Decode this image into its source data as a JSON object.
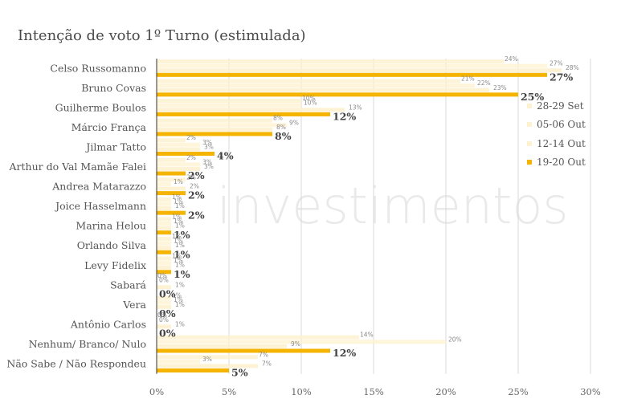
{
  "title": "Intenção de voto 1º Turno (estimulada)",
  "watermark_text": "investimentos",
  "legend": [
    {
      "label": "28-29 Set",
      "color": "#fdf1cf"
    },
    {
      "label": "05-06 Out",
      "color": "#fdf1cf"
    },
    {
      "label": "12-14 Out",
      "color": "#fdf1cf"
    },
    {
      "label": "19-20 Out",
      "color": "#f5b400"
    }
  ],
  "chart_data": {
    "type": "bar",
    "orientation": "horizontal",
    "title": "Intenção de voto 1º Turno (estimulada)",
    "categories": [
      "Celso Russomanno",
      "Bruno Covas",
      "Guilherme Boulos",
      "Márcio França",
      "Jilmar Tatto",
      "Arthur do Val Mamãe Falei",
      "Andrea Matarazzo",
      "Joice Hasselmann",
      "Marina Helou",
      "Orlando Silva",
      "Levy Fidelix",
      "Sabará",
      "Vera",
      "Antônio Carlos",
      "Nenhum/ Branco/ Nulo",
      "Não Sabe / Não Respondeu"
    ],
    "series": [
      {
        "name": "28-29 Set",
        "values": [
          24,
          21,
          10,
          8,
          2,
          2,
          2,
          1,
          1,
          1,
          1,
          0,
          1,
          0,
          14,
          7
        ],
        "labels": [
          "24%",
          "21%",
          "10%",
          "8%",
          "2%",
          "2%",
          "2%",
          "1%",
          "1%",
          "1%",
          "1%",
          "0%",
          "1%",
          "0%",
          "14%",
          "7%"
        ]
      },
      {
        "name": "05-06 Out",
        "values": [
          27,
          22,
          10,
          9,
          3,
          3,
          1,
          1,
          1,
          1,
          1,
          0,
          1,
          0,
          20,
          3
        ],
        "labels": [
          "27%",
          "22%",
          "10%",
          "9%",
          "3%",
          "3%",
          "1%",
          "1%",
          "1%",
          "1%",
          "1%",
          "0%",
          "1%",
          "0%",
          "20%",
          "3%"
        ]
      },
      {
        "name": "12-14 Out",
        "values": [
          28,
          23,
          13,
          8,
          3,
          3,
          2,
          1,
          1,
          1,
          1,
          1,
          1,
          1,
          9,
          7
        ],
        "labels": [
          "28%",
          "23%",
          "13%",
          "8%",
          "3%",
          "3%",
          "2%",
          "1%",
          "1%",
          "1%",
          "1%",
          "1%",
          "1%",
          "1%",
          "9%",
          "7%"
        ]
      },
      {
        "name": "19-20 Out",
        "values": [
          27,
          25,
          12,
          8,
          4,
          2,
          2,
          2,
          1,
          1,
          1,
          0,
          0,
          0,
          12,
          5
        ],
        "labels": [
          "27%",
          "25%",
          "12%",
          "8%",
          "4%",
          "2%",
          "2%",
          "2%",
          "1%",
          "1%",
          "1%",
          "0%",
          "0%",
          "0%",
          "12%",
          "5%"
        ]
      }
    ],
    "x_ticks": [
      "0%",
      "5%",
      "10%",
      "15%",
      "20%",
      "25%",
      "30%"
    ],
    "xlim": [
      0,
      30
    ],
    "grid": true,
    "legend_position": "right"
  }
}
